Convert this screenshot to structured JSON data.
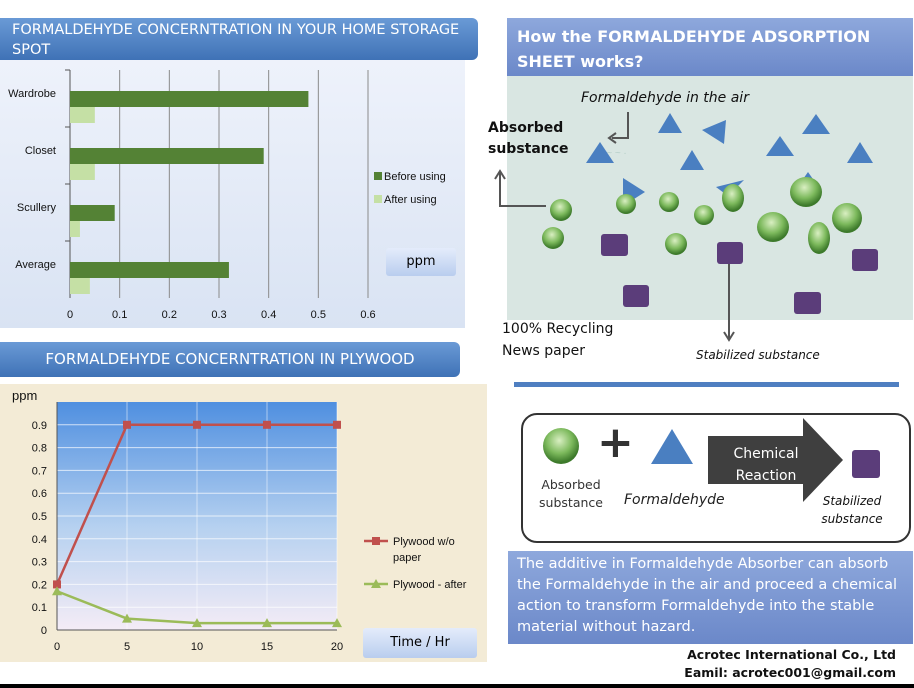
{
  "left": {
    "bar_title": "FORMALDEHYDE CONCERNTRATION IN YOUR HOME STORAGE SPOT",
    "bar_unit": "ppm",
    "line_title": "FORMALDEHYDE CONCERNTRATION IN PLYWOOD",
    "line_unit": "ppm",
    "line_xunit": "Time / Hr"
  },
  "panel": {
    "title": "How the FORMALDEHYDE ADSORPTION SHEET works?",
    "air_label": "Formaldehyde in the air",
    "absorbed_label": "Absorbed substance",
    "recycling_label": "100% Recycling News paper",
    "stabilized_label": "Stabilized substance"
  },
  "reaction": {
    "absorbed": "Absorbed substance",
    "plus": "+",
    "formaldehyde": "Formaldehyde",
    "arrow_text": "Chemical Reaction",
    "stabilized": "Stabilized substance"
  },
  "description": "The additive in Formaldehyde  Absorber can absorb the Formaldehyde in the air and proceed  a chemical action to transform Formaldehyde into the stable material without hazard.",
  "company": {
    "name": "Acrotec International Co., Ltd",
    "email": "Eamil: acrotec001@gmail.com"
  },
  "colors": {
    "before": "#548235",
    "after": "#c5e0a5",
    "red_series": "#c0504d",
    "green_series": "#9bbb59",
    "green_ball": "#6aa84f",
    "triangle": "#4a7fc1",
    "square": "#5b3d7a"
  },
  "chart_data": [
    {
      "type": "bar",
      "orientation": "horizontal",
      "categories": [
        "Wardrobe",
        "Closet",
        "Scullery",
        "Average"
      ],
      "series": [
        {
          "name": "Before using",
          "values": [
            0.48,
            0.39,
            0.09,
            0.32
          ]
        },
        {
          "name": "After using",
          "values": [
            0.05,
            0.05,
            0.02,
            0.04
          ]
        }
      ],
      "xlim": [
        0,
        0.6
      ],
      "xticks": [
        "0",
        "0.1",
        "0.2",
        "0.3",
        "0.4",
        "0.5",
        "0.6"
      ],
      "ylabel": "ppm",
      "legend": "right",
      "grid": true
    },
    {
      "type": "line",
      "x": [
        0,
        5,
        10,
        15,
        20
      ],
      "series": [
        {
          "name": "Plywood w/o paper",
          "values": [
            0.2,
            0.9,
            0.9,
            0.9,
            0.9
          ]
        },
        {
          "name": "Plywood - after",
          "values": [
            0.17,
            0.05,
            0.03,
            0.03,
            0.03
          ]
        }
      ],
      "ylim": [
        0,
        1.0
      ],
      "yticks": [
        "0",
        "0.1",
        "0.2",
        "0.3",
        "0.4",
        "0.5",
        "0.6",
        "0.7",
        "0.8",
        "0.9"
      ],
      "xticks": [
        "0",
        "5",
        "10",
        "15",
        "20"
      ],
      "ylabel": "ppm",
      "xlabel": "Time / Hr",
      "legend": "right",
      "grid": true
    }
  ]
}
